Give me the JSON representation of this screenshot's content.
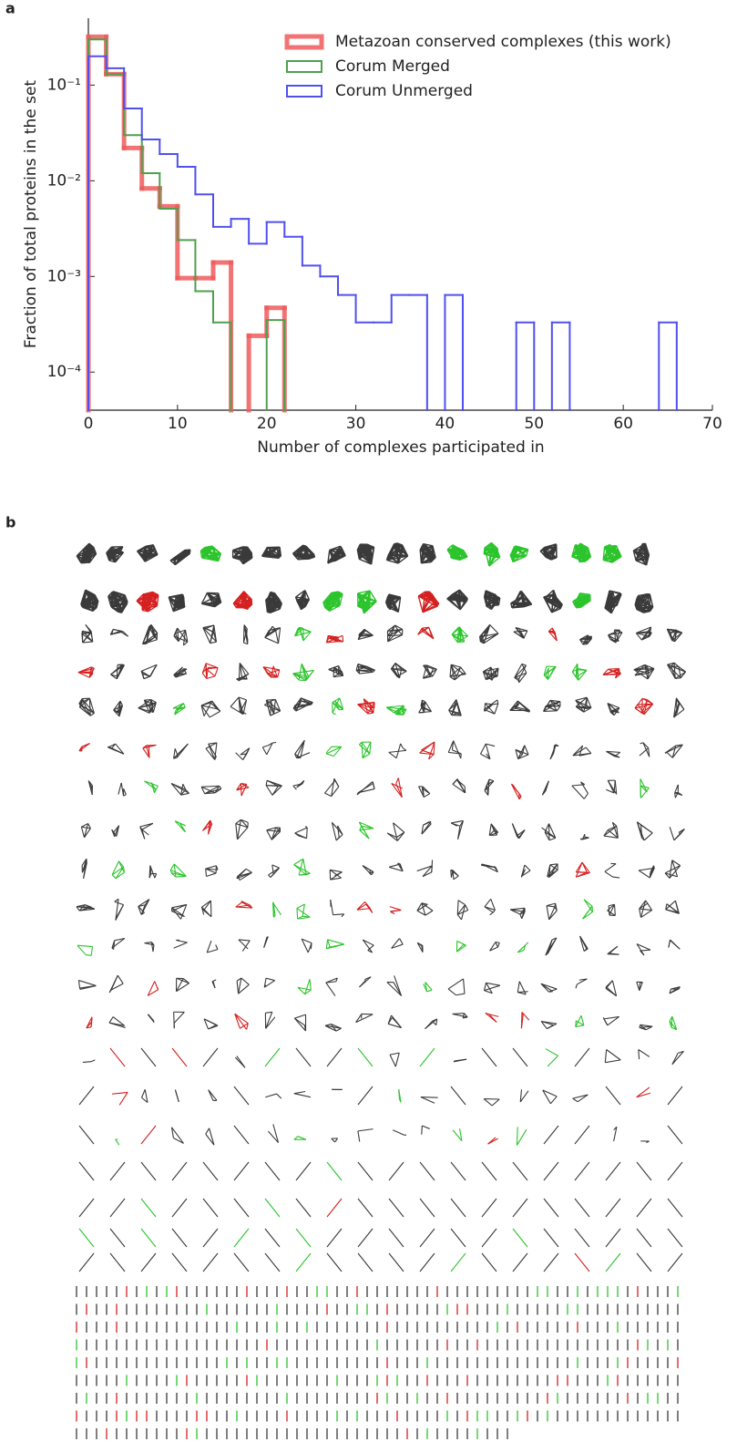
{
  "panel_labels": [
    "a",
    "b"
  ],
  "chart_data": {
    "type": "histogram",
    "x_label": "Number of complexes participated in",
    "y_label": "Fraction of total proteins in the set",
    "xlim": [
      0,
      70
    ],
    "xticks": [
      0,
      10,
      20,
      30,
      40,
      50,
      60,
      70
    ],
    "ylim": [
      4e-05,
      0.5
    ],
    "y_scale": "log",
    "yticks": [
      {
        "value": 0.1,
        "label": "10⁻¹"
      },
      {
        "value": 0.01,
        "label": "10⁻²"
      },
      {
        "value": 0.001,
        "label": "10⁻³"
      },
      {
        "value": 0.0001,
        "label": "10⁻⁴"
      }
    ],
    "legend": "upper right",
    "series": [
      {
        "name": "Metazoan conserved complexes (this work)",
        "color": "#f05a5a",
        "line_width": 5,
        "bins": [
          0,
          2,
          4,
          6,
          8,
          10,
          12,
          14,
          16,
          18,
          20,
          22
        ],
        "values": [
          0.32,
          0.13,
          0.022,
          0.0083,
          0.0054,
          0.00096,
          0.00096,
          0.0014,
          null,
          0.00024,
          0.00047
        ]
      },
      {
        "name": "Corum Merged",
        "color": "#4ea04e",
        "line_width": 2,
        "bins": [
          0,
          2,
          4,
          6,
          8,
          10,
          12,
          14,
          16,
          18,
          20,
          22
        ],
        "values": [
          0.3,
          0.13,
          0.03,
          0.012,
          0.0051,
          0.0024,
          0.0007,
          0.00033,
          null,
          null,
          0.00035
        ]
      },
      {
        "name": "Corum Unmerged",
        "color": "#5050f0",
        "line_width": 2,
        "bins": [
          0,
          2,
          4,
          6,
          8,
          10,
          12,
          14,
          16,
          18,
          20,
          22,
          24,
          26,
          28,
          30,
          32,
          34,
          36,
          38,
          40,
          42,
          44,
          46,
          48,
          50,
          52,
          54,
          56,
          58,
          60,
          62,
          64,
          66
        ],
        "values": [
          0.2,
          0.15,
          0.057,
          0.027,
          0.019,
          0.014,
          0.0072,
          0.0033,
          0.004,
          0.0022,
          0.0037,
          0.0026,
          0.0013,
          0.001,
          0.00064,
          0.00033,
          0.00033,
          0.00064,
          0.00064,
          null,
          0.00064,
          null,
          null,
          null,
          0.00033,
          null,
          0.00033,
          null,
          null,
          null,
          null,
          null,
          0.00033
        ]
      }
    ]
  }
}
